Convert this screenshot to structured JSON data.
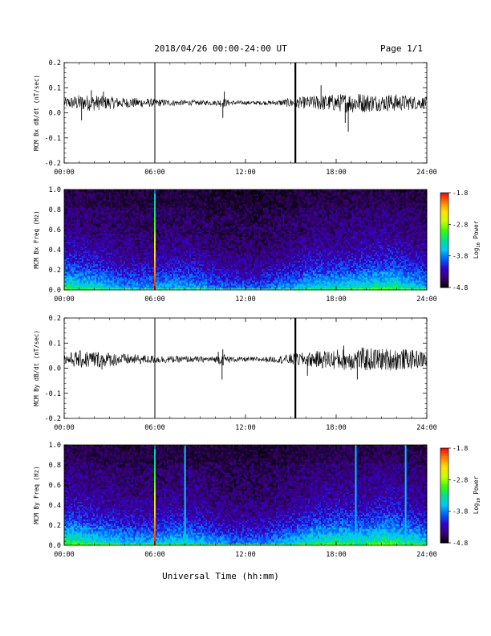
{
  "header": {
    "title": "2018/04/26  00:00-24:00 UT",
    "page": "Page 1/1"
  },
  "xlabel": "Universal Time (hh:mm)",
  "colors": {
    "background": "#ffffff",
    "trace": "#000000"
  },
  "colorbar": {
    "label": "Log10 Power",
    "ticks": [
      "-1.8",
      "-2.8",
      "-3.8",
      "-4.8"
    ],
    "range": [
      -4.8,
      -1.8
    ],
    "colormap": [
      "#000000",
      "#3a006e",
      "#3300cc",
      "#0060ff",
      "#00c8ff",
      "#00e090",
      "#38ff00",
      "#c8ff00",
      "#ffe000",
      "#ff8000",
      "#ff0000"
    ]
  },
  "chart_data": [
    {
      "type": "line",
      "ylabel": "MCM Bx dB/dt (nT/sec)",
      "xlim": [
        0,
        24
      ],
      "ylim": [
        -0.2,
        0.2
      ],
      "x_ticks": [
        "00:00",
        "06:00",
        "12:00",
        "18:00",
        "24:00"
      ],
      "y_ticks": [
        "0.2",
        "0.1",
        "0.0",
        "-0.1",
        "-0.2"
      ],
      "baseline": 0.04,
      "envelope": [
        {
          "x": 0,
          "amp": 0.012
        },
        {
          "x": 1,
          "amp": 0.02
        },
        {
          "x": 2,
          "amp": 0.02
        },
        {
          "x": 3,
          "amp": 0.016
        },
        {
          "x": 4,
          "amp": 0.013
        },
        {
          "x": 5,
          "amp": 0.012
        },
        {
          "x": 6,
          "amp": 0.01
        },
        {
          "x": 7,
          "amp": 0.008
        },
        {
          "x": 8,
          "amp": 0.007
        },
        {
          "x": 9,
          "amp": 0.006
        },
        {
          "x": 10,
          "amp": 0.006
        },
        {
          "x": 10.5,
          "amp": 0.012
        },
        {
          "x": 11,
          "amp": 0.006
        },
        {
          "x": 12,
          "amp": 0.005
        },
        {
          "x": 13,
          "amp": 0.005
        },
        {
          "x": 14,
          "amp": 0.006
        },
        {
          "x": 15,
          "amp": 0.012
        },
        {
          "x": 16,
          "amp": 0.016
        },
        {
          "x": 17,
          "amp": 0.02
        },
        {
          "x": 18,
          "amp": 0.022
        },
        {
          "x": 19,
          "amp": 0.025
        },
        {
          "x": 20,
          "amp": 0.024
        },
        {
          "x": 21,
          "amp": 0.02
        },
        {
          "x": 22,
          "amp": 0.022
        },
        {
          "x": 23,
          "amp": 0.018
        },
        {
          "x": 24,
          "amp": 0.015
        }
      ],
      "spikes": [
        {
          "x": 1.15,
          "y": -0.03
        },
        {
          "x": 1.8,
          "y": 0.09
        },
        {
          "x": 2.6,
          "y": 0.085
        },
        {
          "x": 10.5,
          "y": -0.02
        },
        {
          "x": 10.6,
          "y": 0.085
        },
        {
          "x": 17.0,
          "y": 0.11
        },
        {
          "x": 18.6,
          "y": -0.04
        },
        {
          "x": 18.8,
          "y": -0.075
        },
        {
          "x": 19.5,
          "y": 0.075
        },
        {
          "x": 21.5,
          "y": 0.07
        }
      ],
      "vertical_lines": [
        6.0,
        15.3
      ]
    },
    {
      "type": "heatmap",
      "ylabel": "MCM Bx Freq (Hz)",
      "xlim": [
        0,
        24
      ],
      "ylim": [
        0,
        1
      ],
      "x_ticks": [
        "00:00",
        "06:00",
        "12:00",
        "18:00",
        "24:00"
      ],
      "y_ticks": [
        "1.0",
        "0.8",
        "0.6",
        "0.4",
        "0.2",
        "0.0"
      ],
      "activity": [
        {
          "x": 0,
          "level": 0.65
        },
        {
          "x": 2,
          "level": 0.55
        },
        {
          "x": 4,
          "level": 0.45
        },
        {
          "x": 6,
          "level": 0.45
        },
        {
          "x": 7.5,
          "level": 0.5
        },
        {
          "x": 9,
          "level": 0.45
        },
        {
          "x": 11,
          "level": 0.35
        },
        {
          "x": 13,
          "level": 0.35
        },
        {
          "x": 15,
          "level": 0.45
        },
        {
          "x": 16.5,
          "level": 0.55
        },
        {
          "x": 18,
          "level": 0.55
        },
        {
          "x": 20,
          "level": 0.6
        },
        {
          "x": 21.5,
          "level": 0.65
        },
        {
          "x": 24,
          "level": 0.5
        }
      ],
      "vertical_lines": [
        {
          "x": 6.0,
          "peak": -1.8
        }
      ]
    },
    {
      "type": "line",
      "ylabel": "MCM By dB/dt (nT/sec)",
      "xlim": [
        0,
        24
      ],
      "ylim": [
        -0.2,
        0.2
      ],
      "x_ticks": [
        "00:00",
        "06:00",
        "12:00",
        "18:00",
        "24:00"
      ],
      "y_ticks": [
        "0.2",
        "0.1",
        "0.0",
        "-0.1",
        "-0.2"
      ],
      "baseline": 0.035,
      "envelope": [
        {
          "x": 0,
          "amp": 0.014
        },
        {
          "x": 1,
          "amp": 0.022
        },
        {
          "x": 2,
          "amp": 0.022
        },
        {
          "x": 3,
          "amp": 0.018
        },
        {
          "x": 4,
          "amp": 0.014
        },
        {
          "x": 5,
          "amp": 0.012
        },
        {
          "x": 6,
          "amp": 0.01
        },
        {
          "x": 7,
          "amp": 0.009
        },
        {
          "x": 8,
          "amp": 0.008
        },
        {
          "x": 9,
          "amp": 0.007
        },
        {
          "x": 10,
          "amp": 0.008
        },
        {
          "x": 10.5,
          "amp": 0.015
        },
        {
          "x": 11,
          "amp": 0.007
        },
        {
          "x": 12,
          "amp": 0.006
        },
        {
          "x": 13,
          "amp": 0.006
        },
        {
          "x": 14,
          "amp": 0.008
        },
        {
          "x": 15,
          "amp": 0.014
        },
        {
          "x": 16,
          "amp": 0.018
        },
        {
          "x": 17,
          "amp": 0.022
        },
        {
          "x": 18,
          "amp": 0.026
        },
        {
          "x": 19,
          "amp": 0.028
        },
        {
          "x": 20,
          "amp": 0.03
        },
        {
          "x": 21,
          "amp": 0.028
        },
        {
          "x": 22,
          "amp": 0.028
        },
        {
          "x": 23,
          "amp": 0.024
        },
        {
          "x": 24,
          "amp": 0.02
        }
      ],
      "spikes": [
        {
          "x": 2.5,
          "y": -0.005
        },
        {
          "x": 10.2,
          "y": 0.065
        },
        {
          "x": 10.45,
          "y": -0.045
        },
        {
          "x": 10.5,
          "y": 0.075
        },
        {
          "x": 16.1,
          "y": -0.03
        },
        {
          "x": 18.5,
          "y": 0.09
        },
        {
          "x": 19.4,
          "y": -0.045
        },
        {
          "x": 20.0,
          "y": 0.07
        }
      ],
      "vertical_lines": [
        6.0,
        15.3
      ]
    },
    {
      "type": "heatmap",
      "ylabel": "MCM By Freq (Hz)",
      "xlim": [
        0,
        24
      ],
      "ylim": [
        0,
        1
      ],
      "x_ticks": [
        "00:00",
        "06:00",
        "12:00",
        "18:00",
        "24:00"
      ],
      "y_ticks": [
        "1.0",
        "0.8",
        "0.6",
        "0.4",
        "0.2",
        "0.0"
      ],
      "activity": [
        {
          "x": 0,
          "level": 0.7
        },
        {
          "x": 2,
          "level": 0.6
        },
        {
          "x": 4,
          "level": 0.5
        },
        {
          "x": 6,
          "level": 0.5
        },
        {
          "x": 7.5,
          "level": 0.55
        },
        {
          "x": 9,
          "level": 0.5
        },
        {
          "x": 11,
          "level": 0.4
        },
        {
          "x": 13,
          "level": 0.4
        },
        {
          "x": 15,
          "level": 0.5
        },
        {
          "x": 16.5,
          "level": 0.6
        },
        {
          "x": 18,
          "level": 0.65
        },
        {
          "x": 20,
          "level": 0.62
        },
        {
          "x": 21.5,
          "level": 0.7
        },
        {
          "x": 24,
          "level": 0.55
        }
      ],
      "vertical_lines": [
        {
          "x": 6.0,
          "peak": -1.8
        },
        {
          "x": 8.0,
          "peak": -3.4
        },
        {
          "x": 19.3,
          "peak": -3.6
        },
        {
          "x": 22.6,
          "peak": -3.6
        }
      ]
    }
  ]
}
